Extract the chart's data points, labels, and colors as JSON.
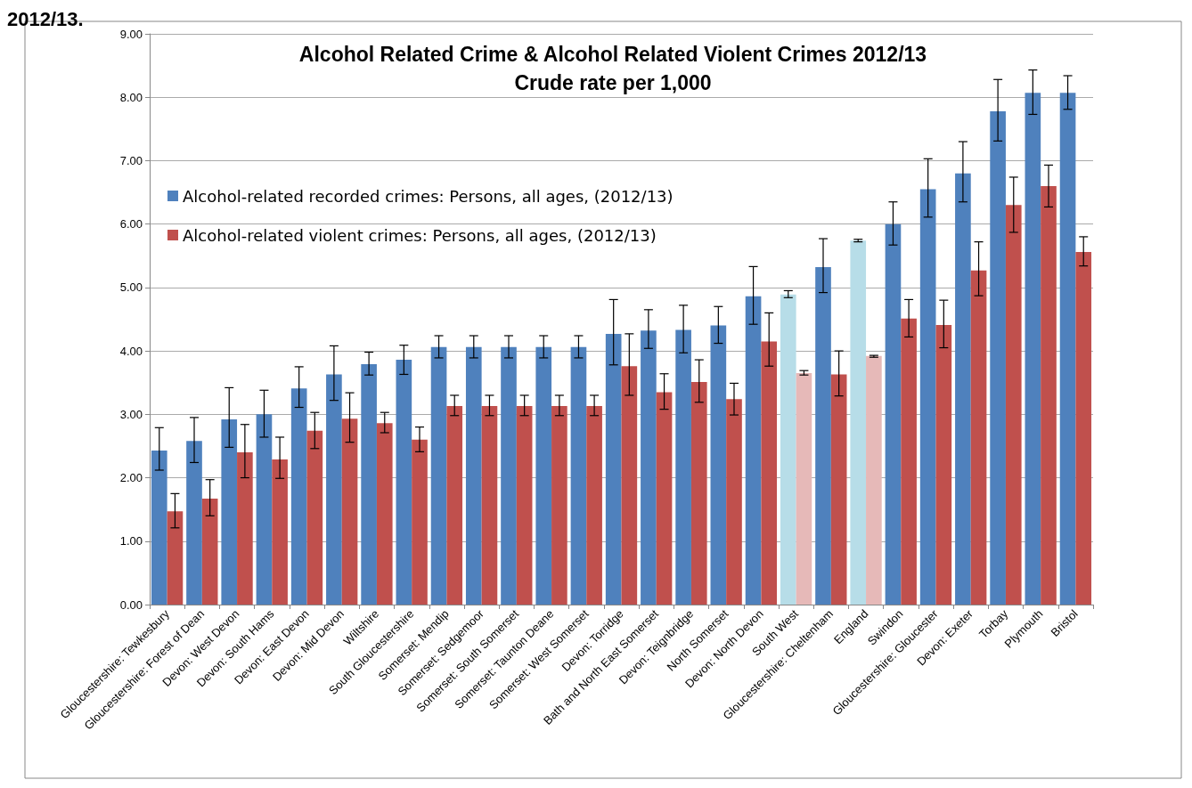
{
  "chart_data": {
    "type": "bar",
    "title": "Alcohol Related Crime & Alcohol Related Violent Crimes 2012/13\nCrude rate per 1,000",
    "annotations": [
      "2012/13."
    ],
    "categories": [
      "Gloucestershire: Tewkesbury",
      "Gloucestershire: Forest of Dean",
      "Devon: West Devon",
      "Devon: South Hams",
      "Devon: East Devon",
      "Devon: Mid Devon",
      "Wiltshire",
      "South Gloucestershire",
      "Somerset: Mendip",
      "Somerset: Sedgemoor",
      "Somerset: South Somerset",
      "Somerset: Taunton Deane",
      "Somerset: West Somerset",
      "Devon: Torridge",
      "Bath and North East Somerset",
      "Devon: Teignbridge",
      "North Somerset",
      "Devon: North Devon",
      "South West",
      "Gloucestershire: Cheltenham",
      "England",
      "Swindon",
      "Gloucestershire: Gloucester",
      "Devon: Exeter",
      "Torbay",
      "Plymouth",
      "Bristol"
    ],
    "series": [
      {
        "name": "Alcohol-related recorded crimes: Persons, all ages, (2012/13)",
        "color": "#4f81bd",
        "colors": [
          "#4f81bd",
          "#4f81bd",
          "#4f81bd",
          "#4f81bd",
          "#4f81bd",
          "#4f81bd",
          "#4f81bd",
          "#4f81bd",
          "#4f81bd",
          "#4f81bd",
          "#4f81bd",
          "#4f81bd",
          "#4f81bd",
          "#4f81bd",
          "#4f81bd",
          "#4f81bd",
          "#4f81bd",
          "#4f81bd",
          "#b7dde8",
          "#4f81bd",
          "#b7dde8",
          "#4f81bd",
          "#4f81bd",
          "#4f81bd",
          "#4f81bd",
          "#4f81bd",
          "#4f81bd"
        ],
        "values": [
          2.43,
          2.58,
          2.92,
          3.0,
          3.41,
          3.63,
          3.79,
          3.86,
          4.06,
          4.06,
          4.06,
          4.06,
          4.06,
          4.27,
          4.32,
          4.33,
          4.4,
          4.86,
          4.89,
          5.32,
          5.74,
          6.0,
          6.55,
          6.8,
          7.78,
          8.07,
          8.07
        ],
        "errors": [
          [
            2.12,
            2.79
          ],
          [
            2.24,
            2.95
          ],
          [
            2.48,
            3.42
          ],
          [
            2.64,
            3.38
          ],
          [
            3.11,
            3.75
          ],
          [
            3.22,
            4.08
          ],
          [
            3.62,
            3.98
          ],
          [
            3.63,
            4.09
          ],
          [
            3.89,
            4.24
          ],
          [
            3.89,
            4.24
          ],
          [
            3.89,
            4.24
          ],
          [
            3.89,
            4.24
          ],
          [
            3.89,
            4.24
          ],
          [
            3.78,
            4.81
          ],
          [
            4.04,
            4.65
          ],
          [
            3.97,
            4.72
          ],
          [
            4.12,
            4.7
          ],
          [
            4.42,
            5.33
          ],
          [
            4.84,
            4.95
          ],
          [
            4.92,
            5.77
          ],
          [
            5.72,
            5.76
          ],
          [
            5.67,
            6.35
          ],
          [
            6.11,
            7.03
          ],
          [
            6.35,
            7.3
          ],
          [
            7.31,
            8.28
          ],
          [
            7.73,
            8.43
          ],
          [
            7.81,
            8.34
          ]
        ]
      },
      {
        "name": "Alcohol-related violent crimes: Persons, all ages, (2012/13)",
        "color": "#c0504d",
        "colors": [
          "#c0504d",
          "#c0504d",
          "#c0504d",
          "#c0504d",
          "#c0504d",
          "#c0504d",
          "#c0504d",
          "#c0504d",
          "#c0504d",
          "#c0504d",
          "#c0504d",
          "#c0504d",
          "#c0504d",
          "#c0504d",
          "#c0504d",
          "#c0504d",
          "#c0504d",
          "#c0504d",
          "#e6b9b8",
          "#c0504d",
          "#e6b9b8",
          "#c0504d",
          "#c0504d",
          "#c0504d",
          "#c0504d",
          "#c0504d",
          "#c0504d"
        ],
        "values": [
          1.47,
          1.67,
          2.4,
          2.29,
          2.74,
          2.93,
          2.86,
          2.6,
          3.13,
          3.13,
          3.13,
          3.13,
          3.13,
          3.76,
          3.35,
          3.51,
          3.24,
          4.15,
          3.65,
          3.63,
          3.92,
          4.51,
          4.41,
          5.27,
          6.3,
          6.6,
          5.56
        ],
        "errors": [
          [
            1.21,
            1.75
          ],
          [
            1.4,
            1.97
          ],
          [
            2.0,
            2.84
          ],
          [
            1.99,
            2.64
          ],
          [
            2.46,
            3.03
          ],
          [
            2.56,
            3.34
          ],
          [
            2.71,
            3.03
          ],
          [
            2.41,
            2.8
          ],
          [
            2.98,
            3.3
          ],
          [
            2.98,
            3.3
          ],
          [
            2.98,
            3.3
          ],
          [
            2.98,
            3.3
          ],
          [
            2.98,
            3.3
          ],
          [
            3.3,
            4.27
          ],
          [
            3.08,
            3.64
          ],
          [
            3.19,
            3.86
          ],
          [
            2.99,
            3.49
          ],
          [
            3.76,
            4.6
          ],
          [
            3.62,
            3.69
          ],
          [
            3.29,
            4.0
          ],
          [
            3.9,
            3.93
          ],
          [
            4.22,
            4.81
          ],
          [
            4.05,
            4.8
          ],
          [
            4.87,
            5.72
          ],
          [
            5.87,
            6.74
          ],
          [
            6.27,
            6.93
          ],
          [
            5.34,
            5.8
          ]
        ]
      }
    ],
    "ylim": [
      0,
      9
    ],
    "yticks": [
      {
        "value": 0,
        "label": "0.00"
      },
      {
        "value": 1,
        "label": "1.00"
      },
      {
        "value": 2,
        "label": "2.00"
      },
      {
        "value": 3,
        "label": "3.00"
      },
      {
        "value": 4,
        "label": "4.00"
      },
      {
        "value": 5,
        "label": "5.00"
      },
      {
        "value": 6,
        "label": "6.00"
      },
      {
        "value": 7,
        "label": "7.00"
      },
      {
        "value": 8,
        "label": "8.00"
      },
      {
        "value": 9,
        "label": "9.00"
      }
    ],
    "grid": "y",
    "legend": "top left"
  }
}
